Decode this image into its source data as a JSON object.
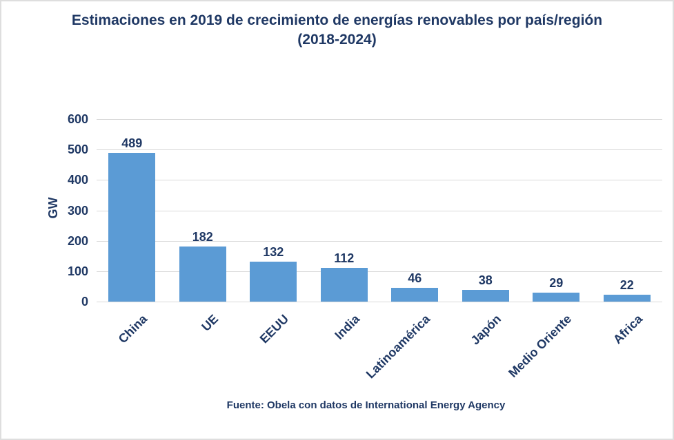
{
  "chart_data": {
    "type": "bar",
    "title": "Estimaciones en 2019 de crecimiento de energías renovables por país/región (2018-2024)",
    "categories": [
      "China",
      "UE",
      "EEUU",
      "India",
      "Latinoamérica",
      "Japón",
      "Medio Oriente",
      "Africa"
    ],
    "values": [
      489,
      182,
      132,
      112,
      46,
      38,
      29,
      22
    ],
    "xlabel": "",
    "ylabel": "GW",
    "ylim": [
      0,
      600
    ],
    "yticks": [
      0,
      100,
      200,
      300,
      400,
      500,
      600
    ],
    "grid": true,
    "legend": false,
    "data_labels": true,
    "source": "Fuente: Obela con datos de International Energy Agency",
    "colors": {
      "bar": "#5B9BD5",
      "text": "#1F3864",
      "gridline": "#D9D9D9",
      "background": "#FFFFFF"
    }
  }
}
